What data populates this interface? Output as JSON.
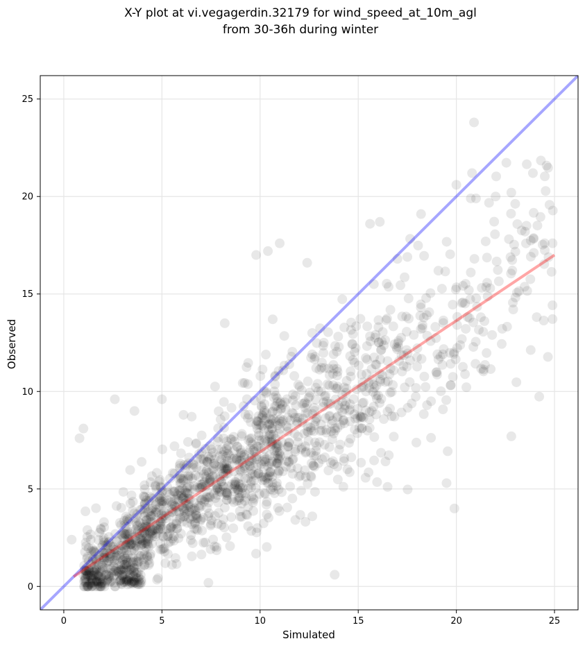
{
  "chart_data": {
    "type": "scatter",
    "title": "X-Y plot at vi.vegagerdin.32179 for wind_speed_at_10m_agl",
    "subtitle": "from 30-36h during winter",
    "xlabel": "Simulated",
    "ylabel": "Observed",
    "xlim": [
      -1.2,
      26.2
    ],
    "ylim": [
      -1.2,
      26.2
    ],
    "xticks": [
      "0",
      "5",
      "10",
      "15",
      "20",
      "25"
    ],
    "yticks": [
      "0",
      "5",
      "10",
      "15",
      "20",
      "25"
    ],
    "grid": true,
    "point_color": "#000000",
    "point_opacity": 0.09,
    "identity_line": {
      "color": "#0000ff",
      "opacity": 0.35,
      "x": [
        -1.2,
        26.2
      ],
      "y": [
        -1.2,
        26.2
      ]
    },
    "fit_line": {
      "color": "#ff0000",
      "opacity": 0.35,
      "x": [
        0.5,
        25.0
      ],
      "y": [
        0.5,
        17.0
      ]
    },
    "outliers": {
      "x": [
        20.9,
        20.0,
        22.8,
        23.9,
        9.8,
        10.4,
        11.0,
        2.6,
        1.0,
        3.6,
        5.0,
        22.8,
        20.8,
        18.2,
        16.1,
        21.0,
        22.0,
        23.5,
        15.6,
        17.0,
        12.4,
        24.5,
        24.9,
        8.2,
        6.1,
        0.4,
        0.8,
        13.8,
        19.5,
        19.9
      ],
      "y": [
        23.8,
        20.6,
        20.2,
        21.2,
        17.0,
        17.2,
        17.6,
        9.6,
        8.1,
        9.0,
        9.6,
        7.7,
        21.2,
        19.1,
        18.7,
        19.9,
        20.0,
        18.2,
        18.6,
        16.8,
        16.6,
        17.6,
        17.6,
        13.5,
        8.8,
        2.4,
        7.6,
        0.6,
        5.3,
        4.0
      ]
    },
    "cloud": {
      "count": 1650,
      "seed": 32179,
      "x_range": [
        0.5,
        25.0
      ],
      "fit_slope": 0.673,
      "fit_intercept": 0.16,
      "noise_sd": 2.6,
      "y_range": [
        0.0,
        23.8
      ]
    }
  }
}
